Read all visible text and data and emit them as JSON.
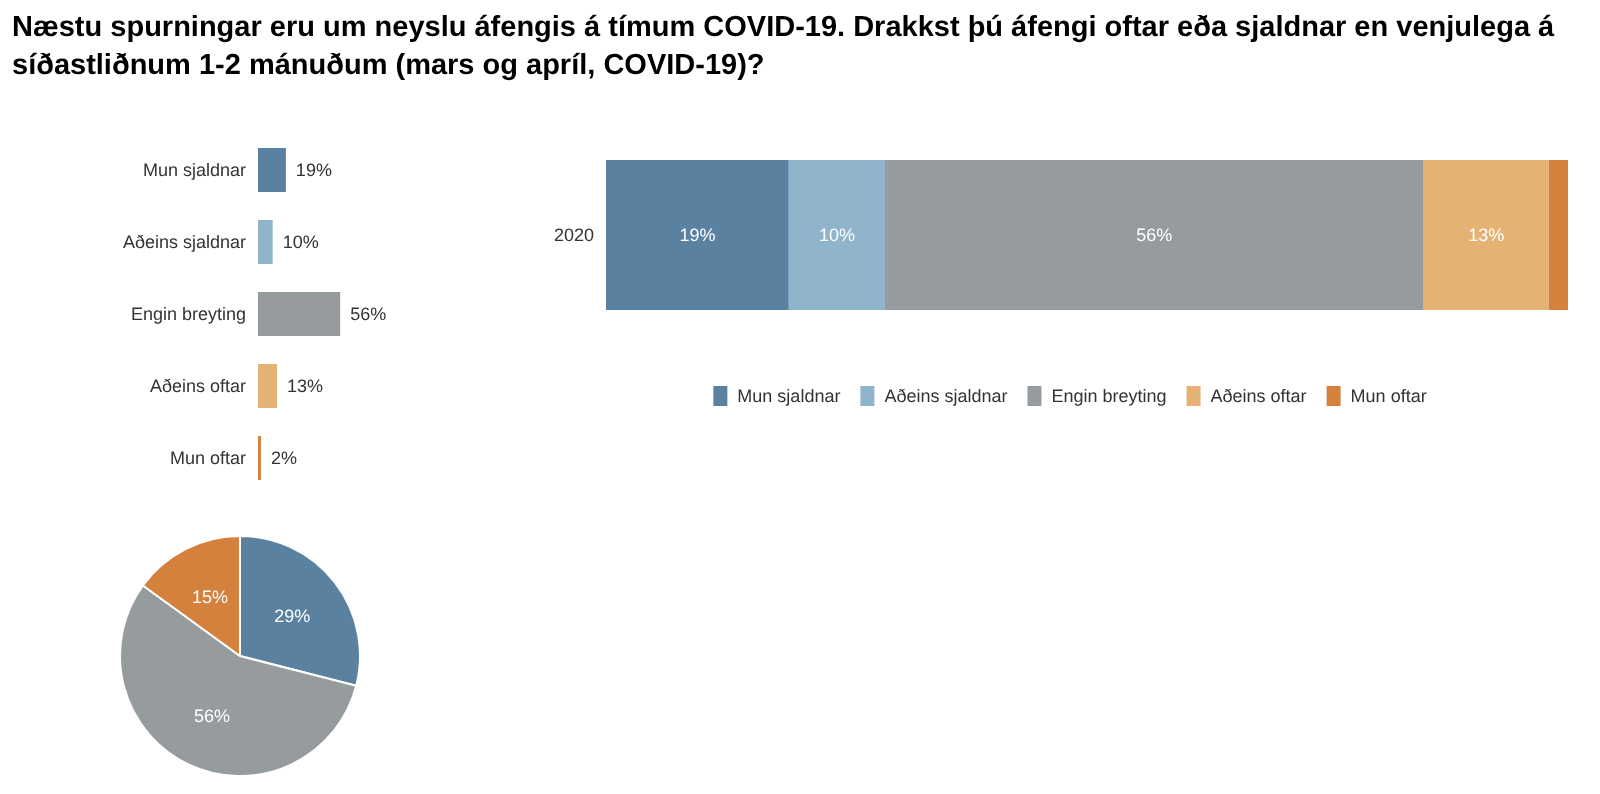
{
  "chart_data": [
    {
      "type": "bar",
      "orientation": "horizontal",
      "title": "Næstu spurningar eru um neyslu áfengis á tímum COVID-19. Drakkst þú áfengi oftar eða sjaldnar en venjulega á síðastliðnum 1-2 mánuðum (mars og apríl, COVID-19)?",
      "categories": [
        "Mun sjaldnar",
        "Aðeins sjaldnar",
        "Engin breyting",
        "Aðeins oftar",
        "Mun oftar"
      ],
      "values": [
        19,
        10,
        56,
        13,
        2
      ],
      "colors": [
        "#5a82a0",
        "#8fb4cb",
        "#969b9e",
        "#e4b373",
        "#d5813e"
      ],
      "value_labels": [
        "19%",
        "10%",
        "56%",
        "13%",
        "2%"
      ],
      "legend": false
    },
    {
      "type": "bar",
      "orientation": "horizontal",
      "stacked": true,
      "categories": [
        "2020"
      ],
      "legend": "bottom",
      "series": [
        {
          "name": "Mun sjaldnar",
          "color": "#5a82a0",
          "values": [
            19
          ],
          "value_labels": [
            "19%"
          ]
        },
        {
          "name": "Aðeins sjaldnar",
          "color": "#8fb4cb",
          "values": [
            10
          ],
          "value_labels": [
            "10%"
          ]
        },
        {
          "name": "Engin breyting",
          "color": "#969b9e",
          "values": [
            56
          ],
          "value_labels": [
            "56%"
          ]
        },
        {
          "name": "Aðeins oftar",
          "color": "#e4b373",
          "values": [
            13
          ],
          "value_labels": [
            "13%"
          ]
        },
        {
          "name": "Mun oftar",
          "color": "#d5813e",
          "values": [
            2
          ],
          "value_labels": [
            null
          ]
        }
      ]
    },
    {
      "type": "pie",
      "categories": [
        null,
        null,
        null
      ],
      "values": [
        29,
        56,
        15
      ],
      "colors": [
        "#5a82a0",
        "#969b9e",
        "#d5813e"
      ],
      "value_labels": [
        "29%",
        "56%",
        "15%"
      ],
      "legend": false
    }
  ]
}
